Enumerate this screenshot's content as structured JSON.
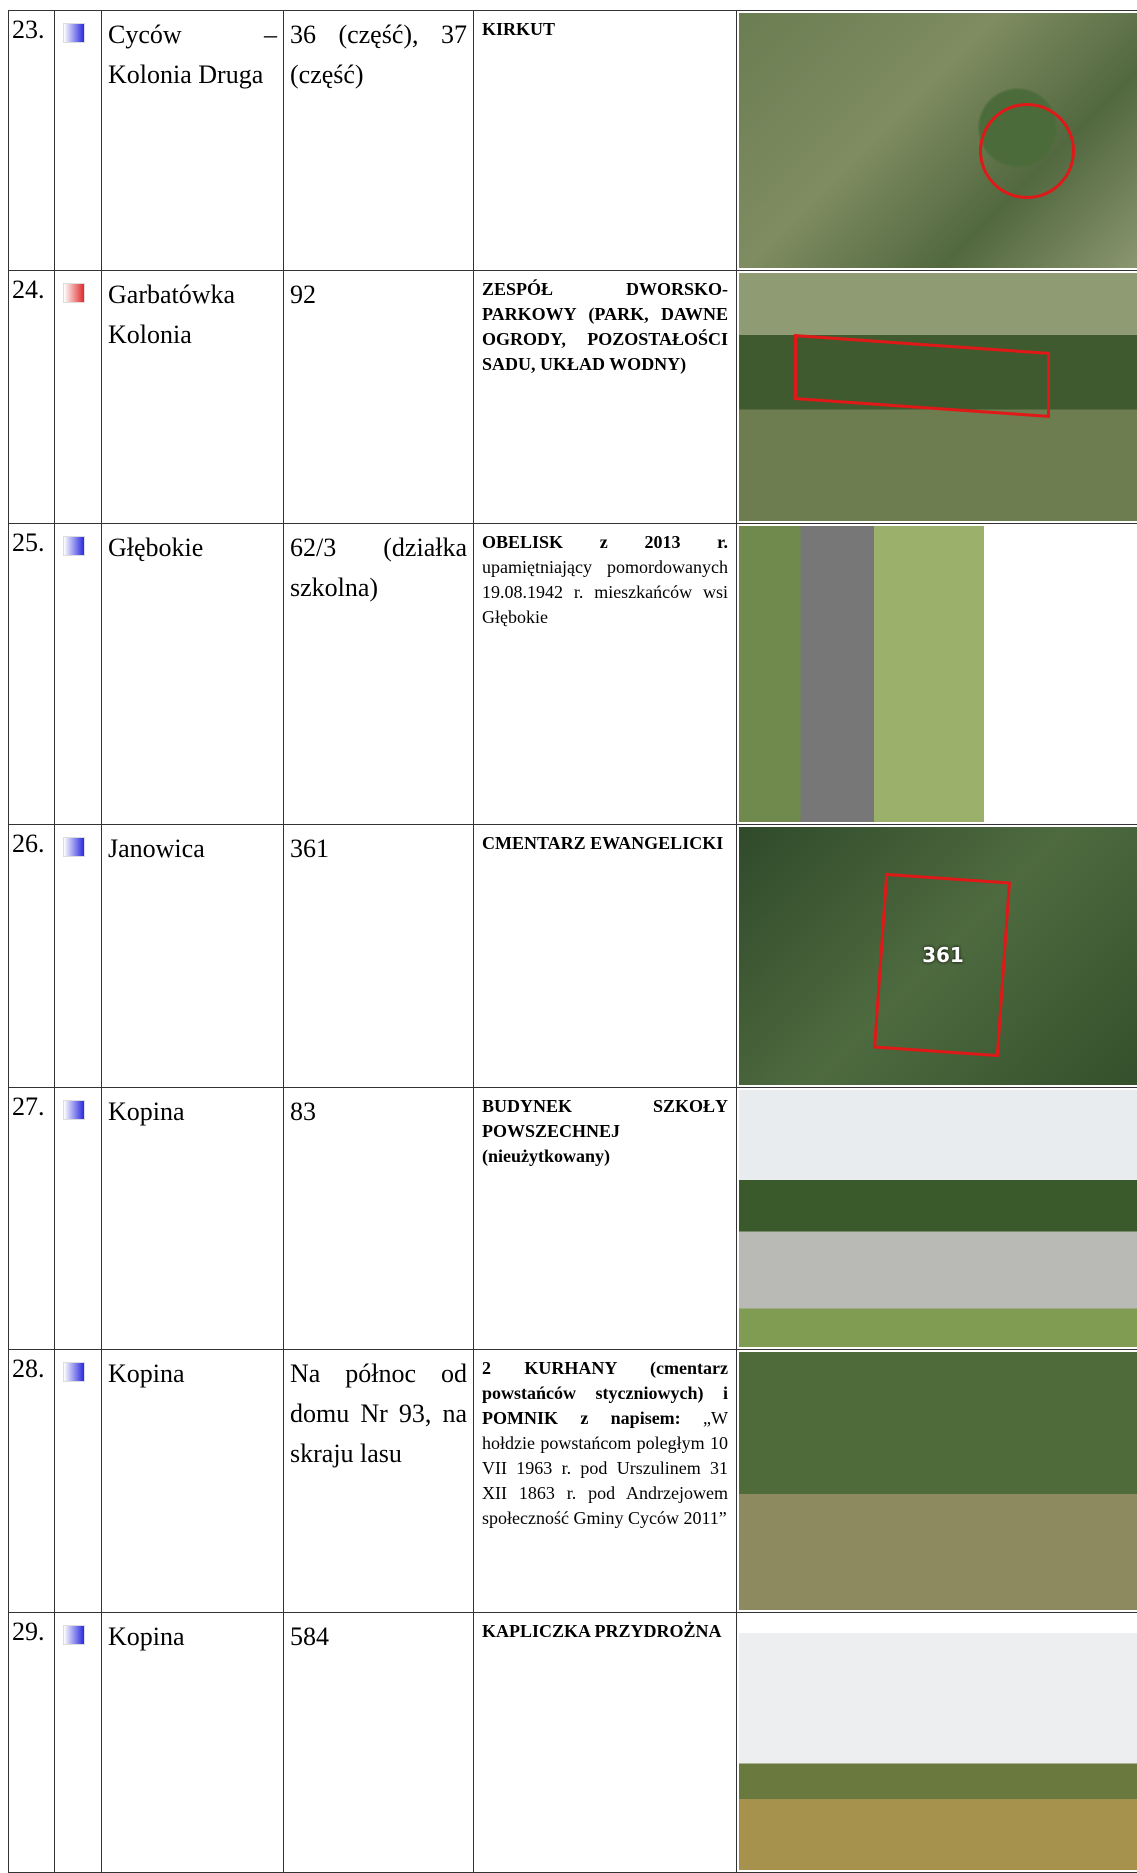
{
  "table": {
    "rows": [
      {
        "no": "23.",
        "marker_color": "#2a2ae0",
        "place": "Cyców – Kolonia Druga",
        "plot": "36 (część), 37 (część)",
        "description": {
          "bold": "KIRKUT"
        }
      },
      {
        "no": "24.",
        "marker_color": "#e02a2a",
        "place": "Garbatówka Kolonia",
        "plot": "92",
        "description": {
          "bold": "ZESPÓŁ DWORSKO-PARKOWY (PARK, DAWNE OGRODY, POZOSTAŁOŚCI SADU, UKŁAD WODNY)"
        }
      },
      {
        "no": "25.",
        "marker_color": "#2a2ae0",
        "place": "Głębokie",
        "plot": "62/3 (działka szkolna)",
        "description": {
          "bold": "OBELISK z 2013 r.",
          "text": "upamiętniający pomordowanych 19.08.1942 r. mieszkańców wsi Głębokie"
        }
      },
      {
        "no": "26.",
        "marker_color": "#2a2ae0",
        "place": "Janowica",
        "plot": "361",
        "description": {
          "bold": "CMENTARZ EWANGELICKI"
        },
        "image_label": "361"
      },
      {
        "no": "27.",
        "marker_color": "#2a2ae0",
        "place": "Kopina",
        "plot": "83",
        "description": {
          "bold": "BUDYNEK SZKOŁY POWSZECHNEJ (nieużytkowany)"
        }
      },
      {
        "no": "28.",
        "marker_color": "#2a2ae0",
        "place": "Kopina",
        "plot": "Na północ od domu Nr 93, na skraju lasu",
        "description": {
          "bold": "2 KURHANY (cmentarz powstańców styczniowych) i POMNIK z napisem:",
          "text": "„W hołdzie powstańcom poległym 10 VII 1963 r. pod Urszulinem 31 XII 1863 r. pod Andrzejowem społeczność Gminy Cyców 2011”"
        }
      },
      {
        "no": "29.",
        "marker_color": "#2a2ae0",
        "place": "Kopina",
        "plot": "584",
        "description": {
          "bold": "KAPLICZKA PRZYDROŻNA"
        }
      }
    ]
  }
}
